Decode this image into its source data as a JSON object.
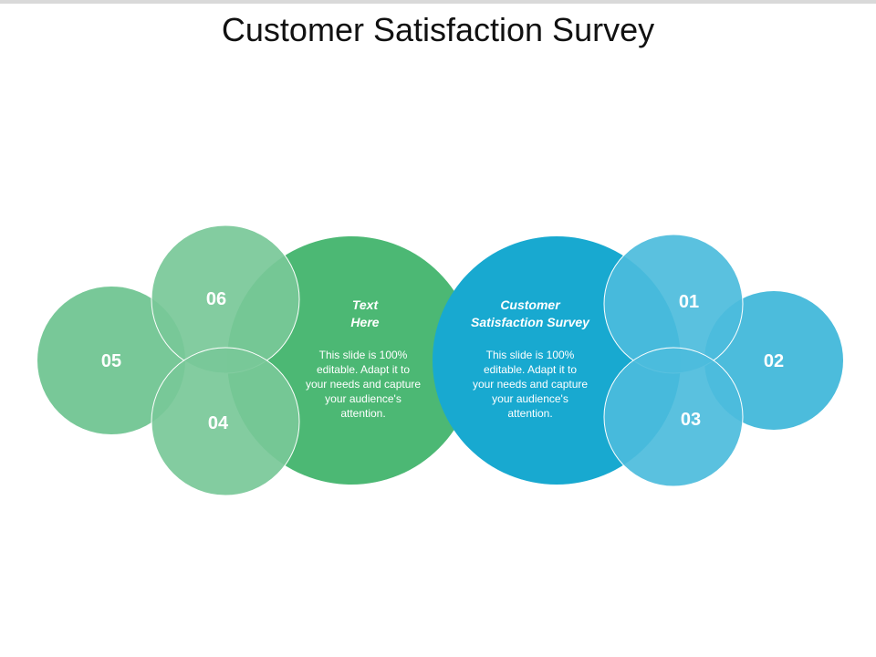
{
  "title": "Customer Satisfaction Survey",
  "colors": {
    "green_dark": "#4cb874",
    "green_light": "#78c898",
    "blue_dark": "#18a9d0",
    "blue_light": "#4cbcdc",
    "outline": "#ffffff"
  },
  "left_center": {
    "heading_line1": "Text",
    "heading_line2": "Here",
    "body": "This slide is 100% editable. Adapt it to your needs and capture your audience's attention."
  },
  "right_center": {
    "heading_line1": "Customer",
    "heading_line2": "Satisfaction Survey",
    "body": "This slide is 100% editable. Adapt it to your needs and capture your audience's attention."
  },
  "bubbles": {
    "b01": "01",
    "b02": "02",
    "b03": "03",
    "b04": "04",
    "b05": "05",
    "b06": "06"
  }
}
